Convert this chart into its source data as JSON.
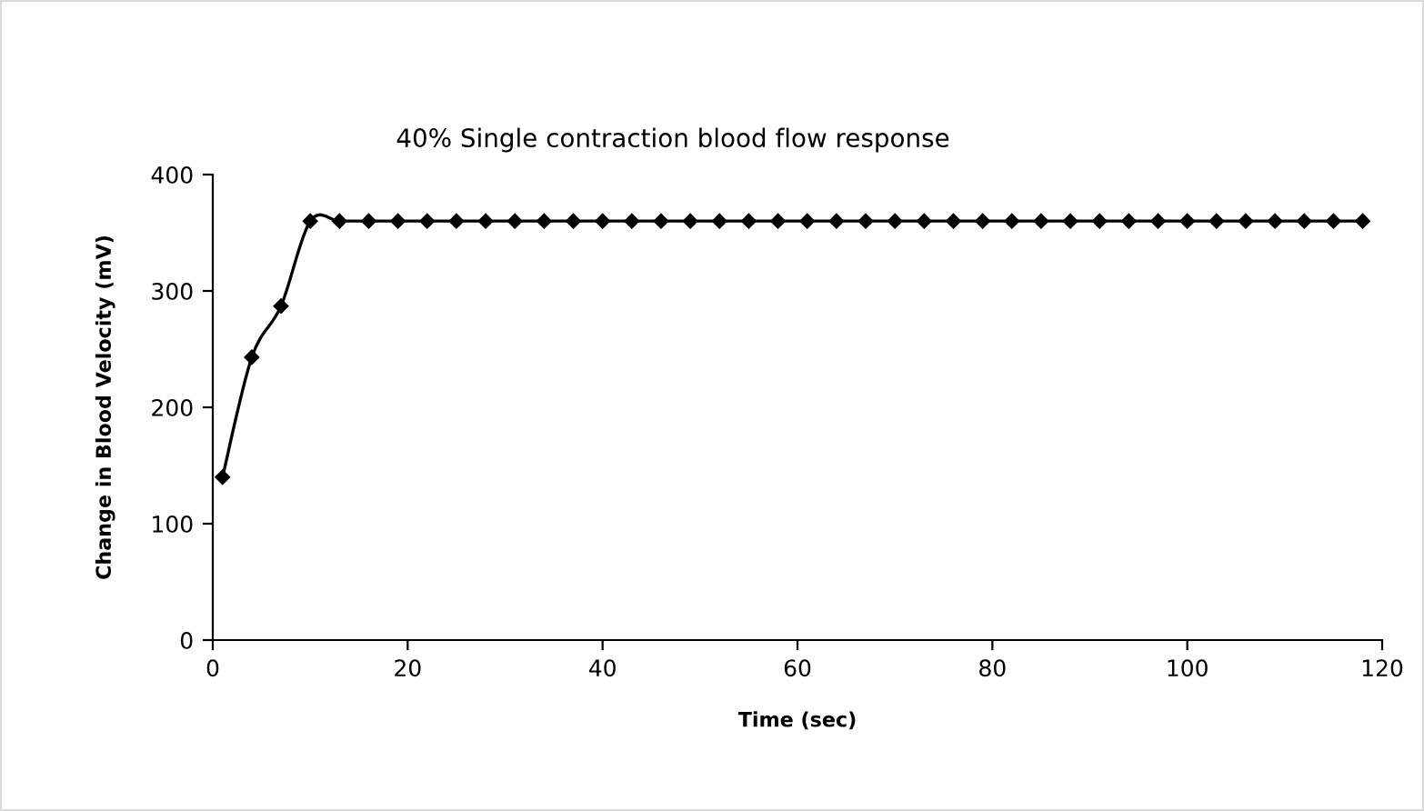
{
  "chart_data": {
    "type": "line",
    "title": "40% Single contraction blood flow response",
    "xlabel": "Time (sec)",
    "ylabel": "Change in Blood Velocity (mV)",
    "x": [
      1,
      4,
      7,
      10,
      13,
      16,
      19,
      22,
      25,
      28,
      31,
      34,
      37,
      40,
      43,
      46,
      49,
      52,
      55,
      58,
      61,
      64,
      67,
      70,
      73,
      76,
      79,
      82,
      85,
      88,
      91,
      94,
      97,
      100,
      103,
      106,
      109,
      112,
      115,
      118
    ],
    "series": [
      {
        "color": "#000000",
        "values": [
          140,
          243,
          287,
          360,
          360,
          360,
          360,
          360,
          360,
          360,
          360,
          360,
          360,
          360,
          360,
          360,
          360,
          360,
          360,
          360,
          360,
          360,
          360,
          360,
          360,
          360,
          360,
          360,
          360,
          360,
          360,
          360,
          360,
          360,
          360,
          360,
          360,
          360,
          360,
          360
        ]
      }
    ],
    "xlim": [
      0,
      120
    ],
    "xticks": [
      0,
      20,
      40,
      60,
      80,
      100,
      120
    ],
    "ylim": [
      0,
      400
    ],
    "yticks": [
      0,
      100,
      200,
      300,
      400
    ],
    "grid": false,
    "legend": false,
    "marker": "diamond",
    "line_style": "solid"
  }
}
